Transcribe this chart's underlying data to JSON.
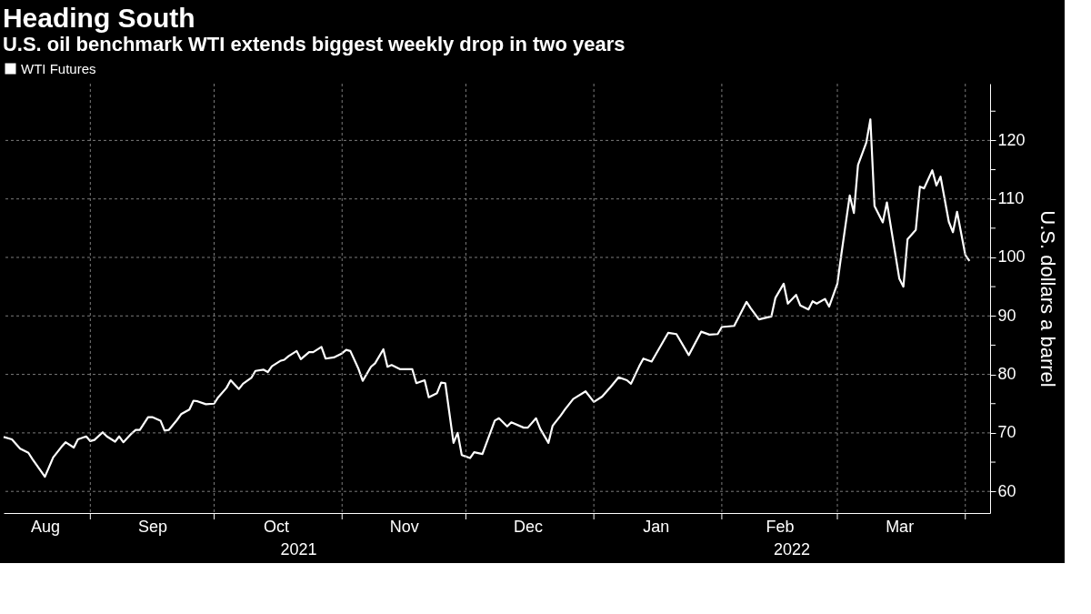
{
  "chart_data": {
    "type": "line",
    "title": "Heading South",
    "subtitle": "U.S. oil benchmark WTI extends biggest weekly drop in two years",
    "ylabel": "U.S. dollars a barrel",
    "x": [
      "2021-08-11",
      "2021-08-13",
      "2021-08-15",
      "2021-08-17",
      "2021-08-18",
      "2021-08-21",
      "2021-08-23",
      "2021-08-25",
      "2021-08-26",
      "2021-08-28",
      "2021-08-29",
      "2021-08-31",
      "2021-09-01",
      "2021-09-02",
      "2021-09-04",
      "2021-09-05",
      "2021-09-07",
      "2021-09-08",
      "2021-09-09",
      "2021-09-11",
      "2021-09-12",
      "2021-09-13",
      "2021-09-15",
      "2021-09-16",
      "2021-09-18",
      "2021-09-19",
      "2021-09-20",
      "2021-09-22",
      "2021-09-23",
      "2021-09-25",
      "2021-09-26",
      "2021-09-27",
      "2021-09-29",
      "2021-10-01",
      "2021-10-02",
      "2021-10-04",
      "2021-10-05",
      "2021-10-07",
      "2021-10-08",
      "2021-10-10",
      "2021-10-11",
      "2021-10-13",
      "2021-10-14",
      "2021-10-15",
      "2021-10-17",
      "2021-10-18",
      "2021-10-19",
      "2021-10-21",
      "2021-10-22",
      "2021-10-24",
      "2021-10-25",
      "2021-10-27",
      "2021-10-28",
      "2021-10-30",
      "2021-11-01",
      "2021-11-02",
      "2021-11-03",
      "2021-11-05",
      "2021-11-06",
      "2021-11-08",
      "2021-11-09",
      "2021-11-11",
      "2021-11-12",
      "2021-11-13",
      "2021-11-15",
      "2021-11-18",
      "2021-11-19",
      "2021-11-21",
      "2021-11-22",
      "2021-11-24",
      "2021-11-25",
      "2021-11-26",
      "2021-11-28",
      "2021-11-29",
      "2021-11-30",
      "2021-12-02",
      "2021-12-03",
      "2021-12-05",
      "2021-12-08",
      "2021-12-09",
      "2021-12-11",
      "2021-12-12",
      "2021-12-15",
      "2021-12-16",
      "2021-12-18",
      "2021-12-19",
      "2021-12-21",
      "2021-12-22",
      "2021-12-24",
      "2021-12-25",
      "2021-12-27",
      "2021-12-30",
      "2022-01-01",
      "2022-01-03",
      "2022-01-05",
      "2022-01-07",
      "2022-01-09",
      "2022-01-10",
      "2022-01-12",
      "2022-01-13",
      "2022-01-15",
      "2022-01-19",
      "2022-01-21",
      "2022-01-24",
      "2022-01-27",
      "2022-01-29",
      "2022-01-31",
      "2022-02-01",
      "2022-02-04",
      "2022-02-07",
      "2022-02-08",
      "2022-02-10",
      "2022-02-13",
      "2022-02-14",
      "2022-02-16",
      "2022-02-17",
      "2022-02-19",
      "2022-02-20",
      "2022-02-22",
      "2022-02-23",
      "2022-02-24",
      "2022-02-26",
      "2022-02-27",
      "2022-03-01",
      "2022-03-02",
      "2022-03-04",
      "2022-03-05",
      "2022-03-06",
      "2022-03-08",
      "2022-03-09",
      "2022-03-10",
      "2022-03-12",
      "2022-03-13",
      "2022-03-16",
      "2022-03-17",
      "2022-03-18",
      "2022-03-20",
      "2022-03-21",
      "2022-03-22",
      "2022-03-24",
      "2022-03-25",
      "2022-03-26",
      "2022-03-28",
      "2022-03-29",
      "2022-03-30",
      "2022-04-01",
      "2022-04-02"
    ],
    "series": [
      {
        "name": "WTI Futures",
        "color": "#ffffff",
        "values": [
          69.3,
          68.9,
          67.3,
          66.6,
          65.5,
          62.5,
          65.8,
          67.6,
          68.4,
          67.5,
          68.9,
          69.4,
          68.6,
          68.8,
          70.1,
          69.4,
          68.5,
          69.4,
          68.4,
          69.9,
          70.5,
          70.5,
          72.7,
          72.7,
          72.1,
          70.4,
          70.5,
          72.2,
          73.2,
          74.0,
          75.5,
          75.4,
          74.9,
          75.0,
          76.1,
          77.7,
          79.0,
          77.5,
          78.4,
          79.4,
          80.6,
          80.8,
          80.4,
          81.4,
          82.3,
          82.5,
          83.1,
          84.0,
          82.6,
          83.8,
          83.8,
          84.7,
          82.7,
          82.9,
          83.6,
          84.2,
          84.0,
          80.9,
          78.9,
          81.3,
          81.9,
          84.3,
          81.3,
          81.6,
          80.9,
          80.9,
          78.5,
          79.0,
          76.1,
          76.8,
          78.6,
          78.5,
          68.3,
          70.0,
          66.2,
          65.7,
          66.7,
          66.4,
          72.1,
          72.5,
          71.1,
          71.8,
          70.9,
          70.9,
          72.5,
          70.7,
          68.3,
          71.2,
          73.0,
          74.0,
          75.8,
          77.1,
          75.3,
          76.2,
          77.8,
          79.5,
          79.0,
          78.4,
          81.4,
          82.7,
          82.2,
          87.1,
          86.9,
          83.3,
          87.3,
          86.8,
          86.9,
          88.1,
          88.3,
          92.4,
          91.3,
          89.4,
          89.9,
          93.1,
          95.5,
          92.1,
          93.6,
          91.8,
          91.1,
          92.5,
          92.1,
          92.9,
          91.6,
          95.5,
          100.7,
          110.6,
          107.6,
          115.8,
          119.6,
          123.6,
          108.8,
          106.0,
          109.4,
          96.4,
          95.0,
          103.1,
          104.7,
          112.1,
          111.8,
          114.9,
          112.3,
          113.8,
          106.1,
          104.3,
          107.8,
          100.4,
          99.4
        ]
      }
    ],
    "xlim": [
      "2021-08-11",
      "2022-04-07"
    ],
    "xticks": [
      {
        "value": "2021-08-21",
        "label": "Aug"
      },
      {
        "value": "2021-09-01",
        "label": null
      },
      {
        "value": "2021-09-16",
        "label": "Sep"
      },
      {
        "value": "2021-10-01",
        "label": null
      },
      {
        "value": "2021-10-16",
        "label": "Oct"
      },
      {
        "value": "2021-11-01",
        "label": null
      },
      {
        "value": "2021-11-16",
        "label": "Nov"
      },
      {
        "value": "2021-12-01",
        "label": null
      },
      {
        "value": "2021-12-16",
        "label": "Dec"
      },
      {
        "value": "2022-01-01",
        "label": null
      },
      {
        "value": "2022-01-16",
        "label": "Jan"
      },
      {
        "value": "2022-02-01",
        "label": null
      },
      {
        "value": "2022-02-15",
        "label": "Feb"
      },
      {
        "value": "2022-03-01",
        "label": null
      },
      {
        "value": "2022-03-16",
        "label": "Mar"
      },
      {
        "value": "2022-04-01",
        "label": null
      }
    ],
    "ylim": [
      56.3,
      129.7
    ],
    "yticks": [
      60,
      {
        "value": 65,
        "label": null
      },
      70,
      {
        "value": 75,
        "label": null
      },
      80,
      {
        "value": 85,
        "label": null
      },
      90,
      {
        "value": 95,
        "label": null
      },
      100,
      {
        "value": 105,
        "label": null
      },
      110,
      {
        "value": 115,
        "label": null
      },
      120,
      {
        "value": 125,
        "label": null
      }
    ],
    "annotations": [
      "2021",
      "2022"
    ],
    "grid": true,
    "legend": "top left",
    "line_style": "solid",
    "marker": "none"
  }
}
